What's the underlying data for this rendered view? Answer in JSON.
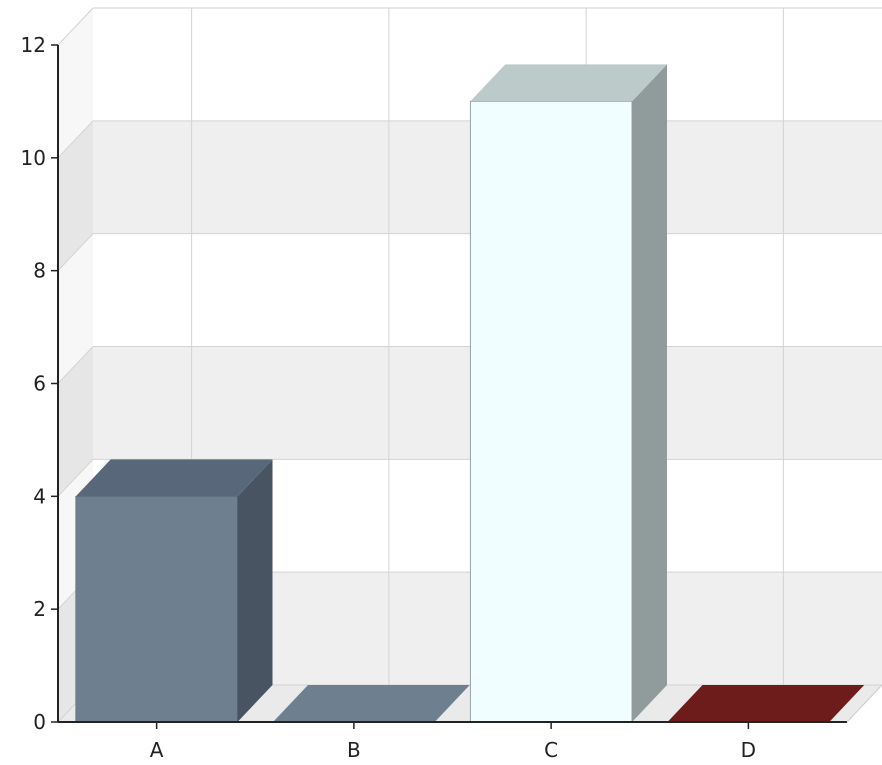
{
  "chart_data": {
    "type": "bar",
    "categories": [
      "A",
      "B",
      "C",
      "D"
    ],
    "values": [
      4,
      0,
      11,
      0
    ],
    "ylim": [
      0,
      12
    ],
    "yticks": [
      0,
      2,
      4,
      6,
      8,
      10,
      12
    ],
    "grid": true,
    "style": "3d",
    "colors": {
      "A": {
        "front": "#6e7f90",
        "top": "#58687a",
        "side": "#485461"
      },
      "B": {
        "front": "#6e7f90",
        "top": "#6e7f90",
        "side": "#55616e"
      },
      "C": {
        "front": "#f0feff",
        "top": "#bdcaca",
        "side": "#8f9c9b"
      },
      "D": {
        "front": "#6e1b1b",
        "top": "#6e1b1b",
        "side": "#501313"
      },
      "back_band": "#efefef",
      "back_wall": "#ffffff",
      "grid_line": "#d3d3d3",
      "axis": "#222222"
    }
  }
}
